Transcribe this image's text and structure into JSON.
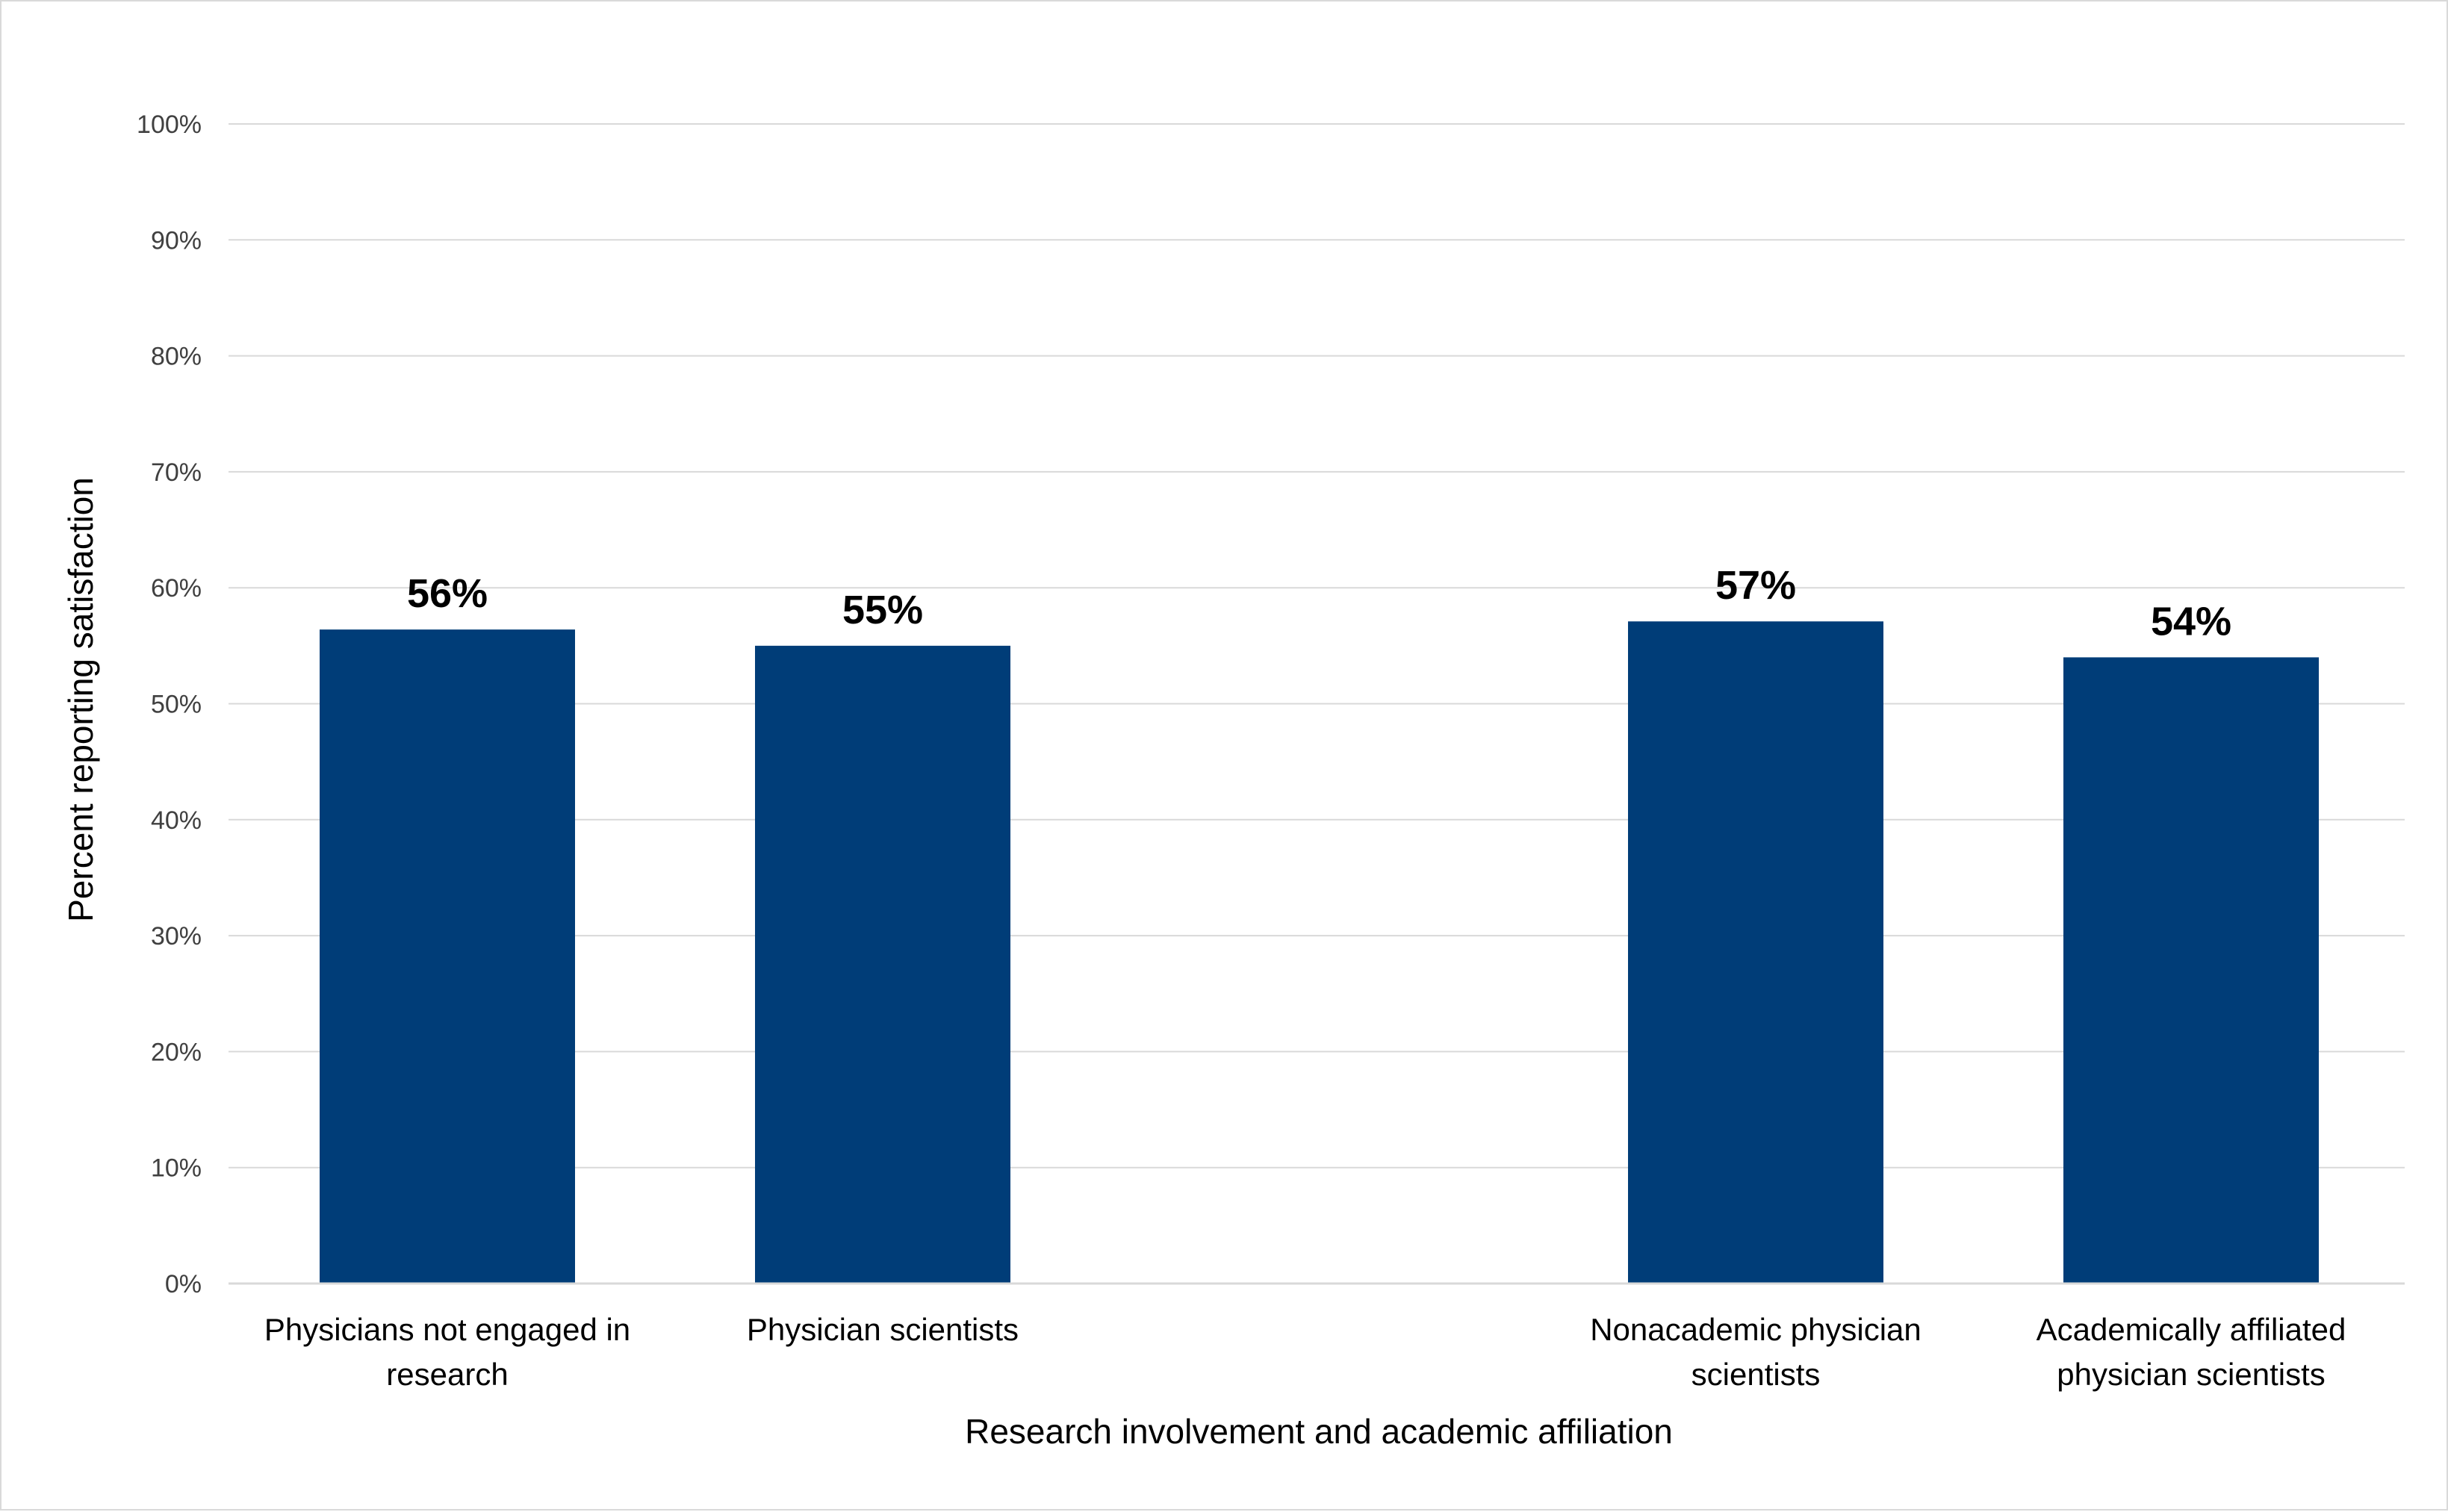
{
  "chart_data": {
    "type": "bar",
    "categories": [
      [
        "Physicians not engaged in",
        "research"
      ],
      [
        "Physician scientists"
      ],
      [
        "Nonacademic physician",
        "scientists"
      ],
      [
        "Academically affiliated",
        "physician scientists"
      ]
    ],
    "values": [
      56.4,
      55.0,
      57.1,
      54.0
    ],
    "data_labels": [
      "56%",
      "55%",
      "57%",
      "54%"
    ],
    "title": "",
    "xlabel": "Research involvement and academic affiliation",
    "ylabel": "Percent reporting satisfaction",
    "ylim": [
      0,
      100
    ],
    "yticks": [
      0,
      10,
      20,
      30,
      40,
      50,
      60,
      70,
      80,
      90,
      100
    ],
    "ytick_labels": [
      "0%",
      "10%",
      "20%",
      "30%",
      "40%",
      "50%",
      "60%",
      "70%",
      "80%",
      "90%",
      "100%"
    ],
    "grid": true,
    "legend": "none",
    "colors": {
      "bar": "#003d78",
      "grid": "#d9d9d9",
      "axis": "#d9d9d9"
    }
  }
}
